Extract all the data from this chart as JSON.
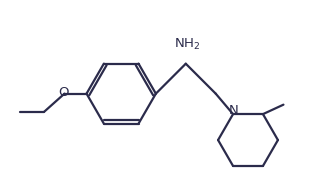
{
  "bg_color": "#ffffff",
  "bond_color": "#2b2b4b",
  "text_color": "#2b2b4b",
  "bond_lw": 1.6,
  "font_size": 9.5,
  "NH2_label": "NH$_2$",
  "N_label": "N",
  "O_label": "O",
  "xlim": [
    0,
    10
  ],
  "ylim": [
    0,
    6.05
  ],
  "figsize": [
    3.18,
    1.92
  ],
  "dpi": 100
}
